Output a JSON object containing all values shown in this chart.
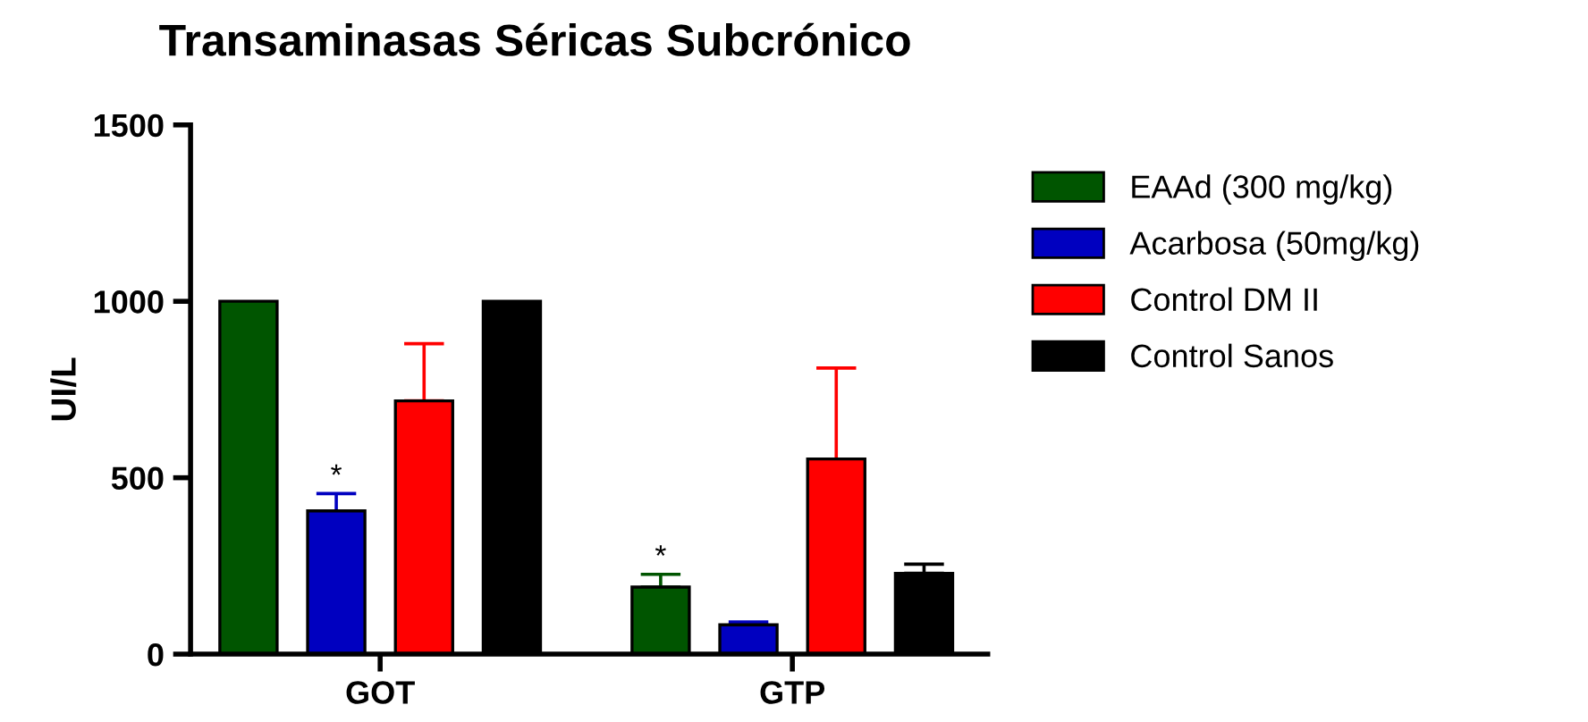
{
  "chart_data": {
    "type": "bar",
    "title": "Transaminasas Séricas Subcrónico",
    "ylabel": "UI/L",
    "categories": [
      "GOT",
      "GTP"
    ],
    "series": [
      {
        "name": "EAAd (300 mg/kg)",
        "color": "#005500",
        "values": [
          1000,
          190
        ],
        "errors": [
          null,
          36
        ]
      },
      {
        "name": "Acarbosa (50mg/kg)",
        "color": "#0000c0",
        "values": [
          406,
          83
        ],
        "errors": [
          49,
          8
        ]
      },
      {
        "name": "Control DM II",
        "color": "#ff0000",
        "values": [
          718,
          553
        ],
        "errors": [
          162,
          258
        ]
      },
      {
        "name": "Control Sanos",
        "color": "#000000",
        "values": [
          1000,
          229
        ],
        "errors": [
          null,
          26
        ]
      }
    ],
    "annotations": [
      "*",
      "*"
    ],
    "ylim": [
      0,
      1500
    ],
    "yticks": [
      0,
      500,
      1000,
      1500
    ],
    "grid": false,
    "legend": "right"
  }
}
